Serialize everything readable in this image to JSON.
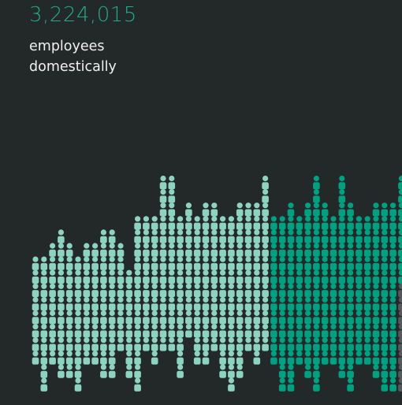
{
  "headline": {
    "value": "3,224,015",
    "caption_line1": "employees",
    "caption_line2": "domestically"
  },
  "colors": {
    "background": "#232829",
    "light": "#8ed3c0",
    "dark": "#00a081",
    "gray": "#55595b",
    "headline": "#24a98c",
    "caption": "#f1f1f1"
  },
  "chart_data": {
    "type": "pictogram",
    "unit": "employee icon",
    "columns": [
      {
        "top_level": 10,
        "bottom_level": 3,
        "color": "light"
      },
      {
        "top_level": 10,
        "bottom_level": 1,
        "color": "light"
      },
      {
        "top_level": 11,
        "bottom_level": 3,
        "color": "light"
      },
      {
        "top_level": 12,
        "bottom_level": 2,
        "color": "light"
      },
      {
        "top_level": 11,
        "bottom_level": 2,
        "color": "light"
      },
      {
        "top_level": 10,
        "bottom_level": 1,
        "color": "light"
      },
      {
        "top_level": 11,
        "bottom_level": 3,
        "color": "light"
      },
      {
        "top_level": 11,
        "bottom_level": 3,
        "color": "light"
      },
      {
        "top_level": 12,
        "bottom_level": 2,
        "color": "light"
      },
      {
        "top_level": 12,
        "bottom_level": 2,
        "color": "light"
      },
      {
        "top_level": 11,
        "bottom_level": 4,
        "color": "light"
      },
      {
        "top_level": 9,
        "bottom_level": 2,
        "color": "light"
      },
      {
        "top_level": 13,
        "bottom_level": 1,
        "color": "light"
      },
      {
        "top_level": 13,
        "bottom_level": 4,
        "color": "light"
      },
      {
        "top_level": 13,
        "bottom_level": 3,
        "color": "light"
      },
      {
        "top_level": 16,
        "bottom_level": 4,
        "color": "light"
      },
      {
        "top_level": 16,
        "bottom_level": 4,
        "color": "light"
      },
      {
        "top_level": 13,
        "bottom_level": 2,
        "color": "light"
      },
      {
        "top_level": 14,
        "bottom_level": 5,
        "color": "light"
      },
      {
        "top_level": 13,
        "bottom_level": 3,
        "color": "light"
      },
      {
        "top_level": 14,
        "bottom_level": 3,
        "color": "light"
      },
      {
        "top_level": 14,
        "bottom_level": 4,
        "color": "light"
      },
      {
        "top_level": 13,
        "bottom_level": 2,
        "color": "light"
      },
      {
        "top_level": 13,
        "bottom_level": 1,
        "color": "light"
      },
      {
        "top_level": 14,
        "bottom_level": 2,
        "color": "light"
      },
      {
        "top_level": 14,
        "bottom_level": 4,
        "color": "light"
      },
      {
        "top_level": 14,
        "bottom_level": 3,
        "color": "light"
      },
      {
        "top_level": 16,
        "bottom_level": 4,
        "color": "light"
      },
      {
        "top_level": 13,
        "bottom_level": 3,
        "color": "dark"
      },
      {
        "top_level": 13,
        "bottom_level": 1,
        "color": "dark"
      },
      {
        "top_level": 14,
        "bottom_level": 1,
        "color": "dark"
      },
      {
        "top_level": 13,
        "bottom_level": 3,
        "color": "dark"
      },
      {
        "top_level": 14,
        "bottom_level": 2,
        "color": "dark"
      },
      {
        "top_level": 16,
        "bottom_level": 1,
        "color": "dark"
      },
      {
        "top_level": 14,
        "bottom_level": 3,
        "color": "dark"
      },
      {
        "top_level": 13,
        "bottom_level": 3,
        "color": "dark"
      },
      {
        "top_level": 16,
        "bottom_level": 2,
        "color": "dark"
      },
      {
        "top_level": 14,
        "bottom_level": 1,
        "color": "dark"
      },
      {
        "top_level": 13,
        "bottom_level": 3,
        "color": "dark"
      },
      {
        "top_level": 13,
        "bottom_level": 3,
        "color": "dark"
      },
      {
        "top_level": 14,
        "bottom_level": 2,
        "color": "dark"
      },
      {
        "top_level": 14,
        "bottom_level": 1,
        "color": "dark"
      },
      {
        "top_level": 14,
        "bottom_level": 1,
        "color": "dark"
      },
      {
        "top_level": 16,
        "bottom_level": 1,
        "color": "dark",
        "gray_from_level": 8
      }
    ]
  }
}
